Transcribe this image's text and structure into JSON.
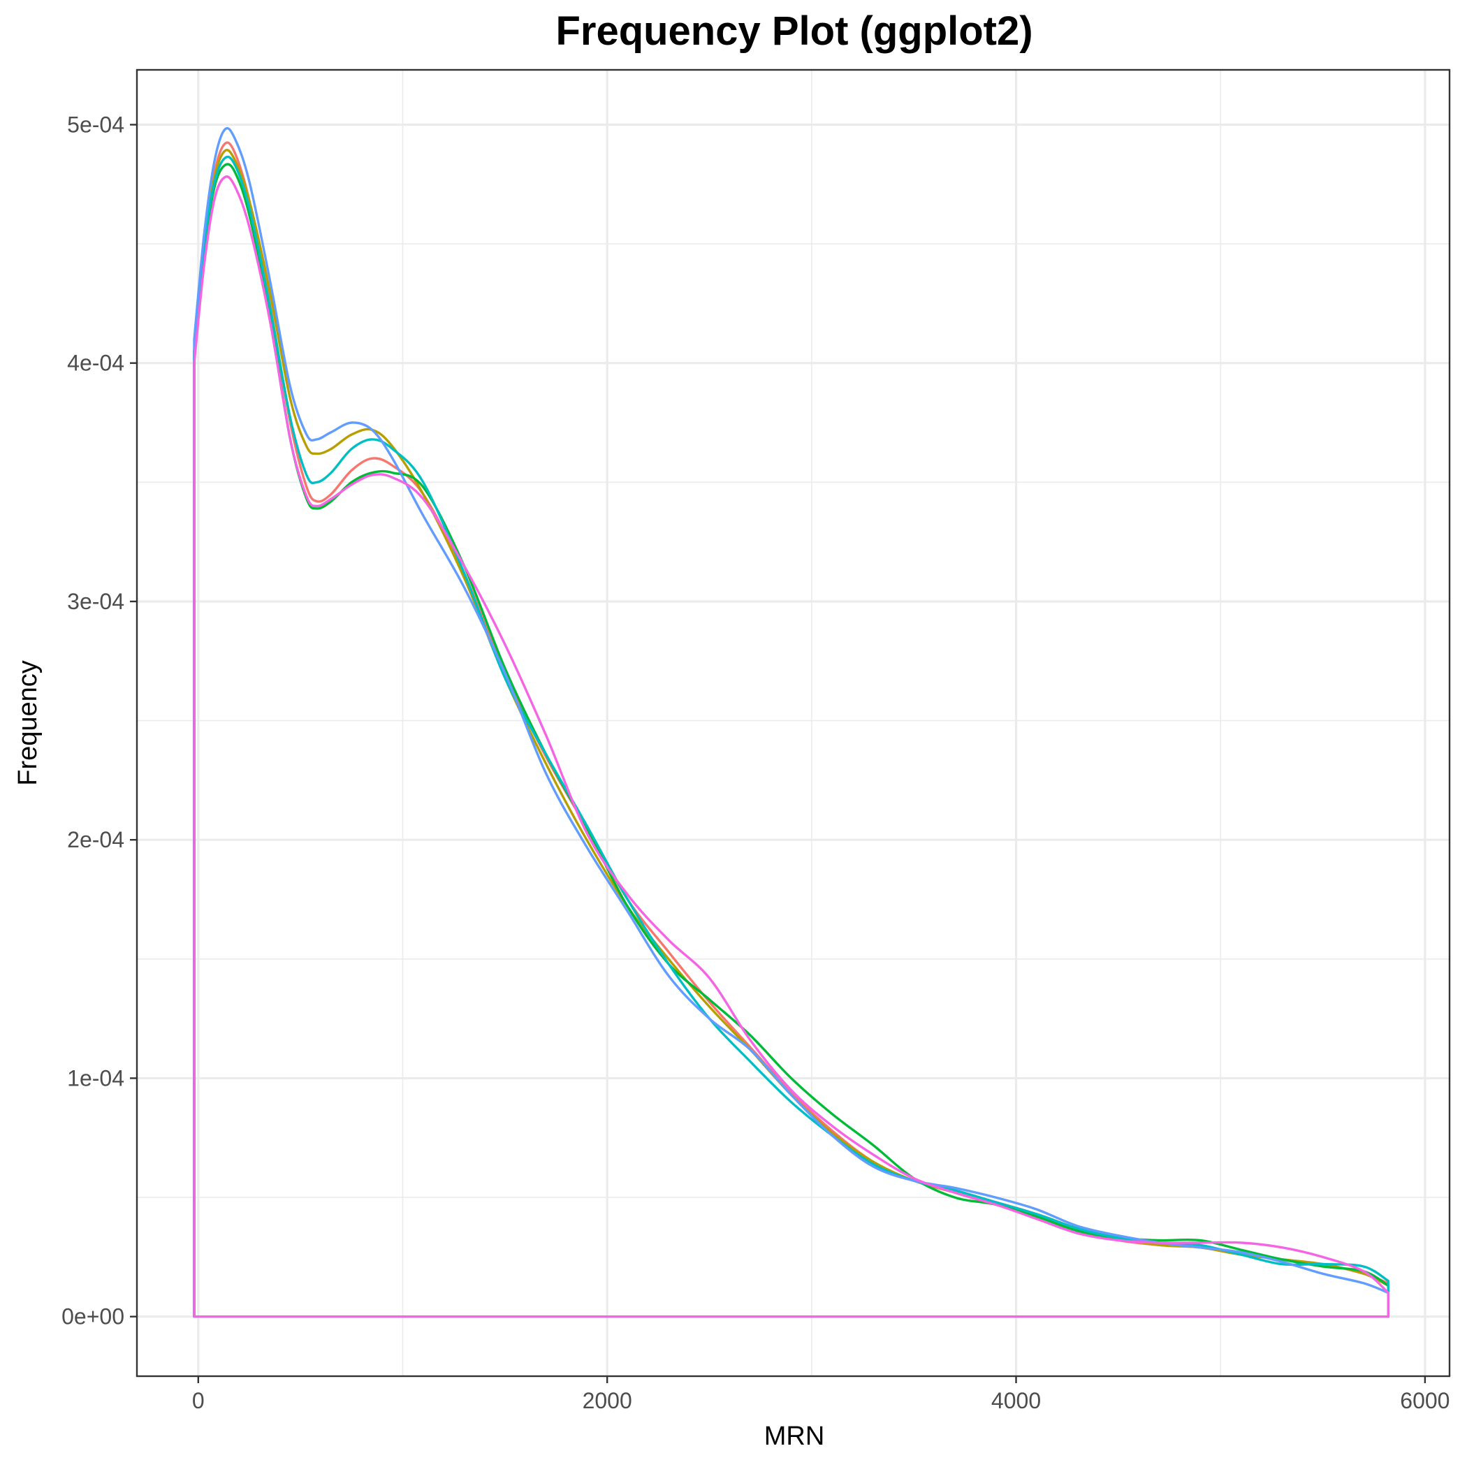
{
  "chart_data": {
    "type": "line",
    "title": "Frequency Plot (ggplot2)",
    "xlabel": "MRN",
    "ylabel": "Frequency",
    "xlim": [
      -300,
      6120
    ],
    "ylim": [
      -2.5e-05,
      0.000523
    ],
    "x_ticks": [
      0,
      2000,
      4000,
      6000
    ],
    "x_tick_labels": [
      "0",
      "2000",
      "4000",
      "6000"
    ],
    "y_ticks": [
      0,
      0.0001,
      0.0002,
      0.0003,
      0.0004,
      0.0005
    ],
    "y_tick_labels": [
      "0e+00",
      "1e-04",
      "2e-04",
      "3e-04",
      "4e-04",
      "5e-04"
    ],
    "grid": true,
    "legend": "none",
    "series": [
      {
        "color": "#F8766D",
        "points": [
          [
            -20,
            0
          ],
          [
            -20,
            0.000405
          ],
          [
            30,
            0.00045
          ],
          [
            80,
            0.00048
          ],
          [
            130,
            0.000492
          ],
          [
            180,
            0.000488
          ],
          [
            250,
            0.000468
          ],
          [
            350,
            0.000425
          ],
          [
            450,
            0.000375
          ],
          [
            530,
            0.000348
          ],
          [
            580,
            0.000342
          ],
          [
            650,
            0.000345
          ],
          [
            750,
            0.000355
          ],
          [
            850,
            0.00036
          ],
          [
            950,
            0.000357
          ],
          [
            1100,
            0.000345
          ],
          [
            1300,
            0.000312
          ],
          [
            1500,
            0.00027
          ],
          [
            1700,
            0.000235
          ],
          [
            1900,
            0.000205
          ],
          [
            2100,
            0.000175
          ],
          [
            2300,
            0.000153
          ],
          [
            2500,
            0.000132
          ],
          [
            2700,
            0.000113
          ],
          [
            2900,
            9.4e-05
          ],
          [
            3100,
            7.8e-05
          ],
          [
            3300,
            6.5e-05
          ],
          [
            3500,
            5.7e-05
          ],
          [
            3700,
            5.3e-05
          ],
          [
            3900,
            4.8e-05
          ],
          [
            4100,
            4.3e-05
          ],
          [
            4300,
            3.6e-05
          ],
          [
            4500,
            3.2e-05
          ],
          [
            4700,
            3e-05
          ],
          [
            4900,
            2.9e-05
          ],
          [
            5100,
            2.6e-05
          ],
          [
            5300,
            2.4e-05
          ],
          [
            5500,
            2.2e-05
          ],
          [
            5700,
            1.8e-05
          ],
          [
            5820,
            1.4e-05
          ],
          [
            5820,
            0
          ],
          [
            -20,
            0
          ]
        ]
      },
      {
        "color": "#B79F00",
        "points": [
          [
            -20,
            0
          ],
          [
            -20,
            0.000405
          ],
          [
            30,
            0.00045
          ],
          [
            80,
            0.000478
          ],
          [
            130,
            0.000489
          ],
          [
            180,
            0.000485
          ],
          [
            250,
            0.000468
          ],
          [
            350,
            0.00043
          ],
          [
            450,
            0.000385
          ],
          [
            530,
            0.000365
          ],
          [
            580,
            0.000362
          ],
          [
            650,
            0.000364
          ],
          [
            750,
            0.00037
          ],
          [
            850,
            0.000372
          ],
          [
            950,
            0.000365
          ],
          [
            1100,
            0.000345
          ],
          [
            1300,
            0.00031
          ],
          [
            1500,
            0.000268
          ],
          [
            1700,
            0.000232
          ],
          [
            1900,
            0.0002
          ],
          [
            2100,
            0.000172
          ],
          [
            2300,
            0.00015
          ],
          [
            2500,
            0.00013
          ],
          [
            2700,
            0.000112
          ],
          [
            2900,
            9.3e-05
          ],
          [
            3100,
            7.7e-05
          ],
          [
            3300,
            6.5e-05
          ],
          [
            3500,
            5.7e-05
          ],
          [
            3700,
            5.2e-05
          ],
          [
            3900,
            4.7e-05
          ],
          [
            4100,
            4.3e-05
          ],
          [
            4300,
            3.7e-05
          ],
          [
            4500,
            3.3e-05
          ],
          [
            4700,
            3e-05
          ],
          [
            4900,
            2.9e-05
          ],
          [
            5100,
            2.6e-05
          ],
          [
            5300,
            2.4e-05
          ],
          [
            5500,
            2.2e-05
          ],
          [
            5700,
            1.8e-05
          ],
          [
            5820,
            1.3e-05
          ],
          [
            5820,
            0
          ],
          [
            -20,
            0
          ]
        ]
      },
      {
        "color": "#00BA38",
        "points": [
          [
            -20,
            0
          ],
          [
            -20,
            0.000405
          ],
          [
            30,
            0.000448
          ],
          [
            80,
            0.000474
          ],
          [
            130,
            0.000483
          ],
          [
            180,
            0.00048
          ],
          [
            250,
            0.000462
          ],
          [
            350,
            0.00042
          ],
          [
            450,
            0.000368
          ],
          [
            530,
            0.000343
          ],
          [
            580,
            0.000339
          ],
          [
            650,
            0.000342
          ],
          [
            750,
            0.00035
          ],
          [
            850,
            0.000354
          ],
          [
            950,
            0.000354
          ],
          [
            1100,
            0.000348
          ],
          [
            1300,
            0.000315
          ],
          [
            1500,
            0.000272
          ],
          [
            1700,
            0.000236
          ],
          [
            1900,
            0.000205
          ],
          [
            2100,
            0.000172
          ],
          [
            2300,
            0.000148
          ],
          [
            2500,
            0.000133
          ],
          [
            2700,
            0.000118
          ],
          [
            2900,
            0.0001
          ],
          [
            3100,
            8.5e-05
          ],
          [
            3300,
            7.2e-05
          ],
          [
            3500,
            5.8e-05
          ],
          [
            3700,
            5e-05
          ],
          [
            3900,
            4.7e-05
          ],
          [
            4100,
            4.2e-05
          ],
          [
            4300,
            3.6e-05
          ],
          [
            4500,
            3.3e-05
          ],
          [
            4700,
            3.2e-05
          ],
          [
            4900,
            3.2e-05
          ],
          [
            5100,
            2.8e-05
          ],
          [
            5300,
            2.4e-05
          ],
          [
            5500,
            2.1e-05
          ],
          [
            5700,
            1.9e-05
          ],
          [
            5820,
            1.3e-05
          ],
          [
            5820,
            0
          ],
          [
            -20,
            0
          ]
        ]
      },
      {
        "color": "#00BFC4",
        "points": [
          [
            -20,
            0
          ],
          [
            -20,
            0.000405
          ],
          [
            30,
            0.00045
          ],
          [
            80,
            0.000476
          ],
          [
            130,
            0.000486
          ],
          [
            180,
            0.000483
          ],
          [
            250,
            0.000465
          ],
          [
            350,
            0.000424
          ],
          [
            450,
            0.000377
          ],
          [
            530,
            0.000353
          ],
          [
            580,
            0.00035
          ],
          [
            650,
            0.000354
          ],
          [
            750,
            0.000364
          ],
          [
            850,
            0.000368
          ],
          [
            950,
            0.000364
          ],
          [
            1100,
            0.00035
          ],
          [
            1300,
            0.000312
          ],
          [
            1500,
            0.000268
          ],
          [
            1700,
            0.000236
          ],
          [
            1900,
            0.000206
          ],
          [
            2100,
            0.000175
          ],
          [
            2300,
            0.000148
          ],
          [
            2500,
            0.000125
          ],
          [
            2700,
            0.000107
          ],
          [
            2900,
            9e-05
          ],
          [
            3100,
            7.6e-05
          ],
          [
            3300,
            6.4e-05
          ],
          [
            3500,
            5.7e-05
          ],
          [
            3700,
            5.3e-05
          ],
          [
            3900,
            4.8e-05
          ],
          [
            4100,
            4.3e-05
          ],
          [
            4300,
            3.7e-05
          ],
          [
            4500,
            3.3e-05
          ],
          [
            4700,
            3.1e-05
          ],
          [
            4900,
            3e-05
          ],
          [
            5100,
            2.6e-05
          ],
          [
            5300,
            2.2e-05
          ],
          [
            5500,
            2.2e-05
          ],
          [
            5700,
            2.1e-05
          ],
          [
            5820,
            1.5e-05
          ],
          [
            5820,
            0
          ],
          [
            -20,
            0
          ]
        ]
      },
      {
        "color": "#619CFF",
        "points": [
          [
            -20,
            0
          ],
          [
            -20,
            0.00041
          ],
          [
            30,
            0.000455
          ],
          [
            80,
            0.000485
          ],
          [
            130,
            0.000498
          ],
          [
            180,
            0.000494
          ],
          [
            250,
            0.000476
          ],
          [
            350,
            0.000435
          ],
          [
            450,
            0.00039
          ],
          [
            530,
            0.00037
          ],
          [
            580,
            0.000368
          ],
          [
            650,
            0.000371
          ],
          [
            750,
            0.000375
          ],
          [
            850,
            0.000372
          ],
          [
            950,
            0.00036
          ],
          [
            1100,
            0.000336
          ],
          [
            1300,
            0.000306
          ],
          [
            1500,
            0.00027
          ],
          [
            1700,
            0.000228
          ],
          [
            1900,
            0.000197
          ],
          [
            2100,
            0.00017
          ],
          [
            2300,
            0.000143
          ],
          [
            2500,
            0.000125
          ],
          [
            2700,
            0.000112
          ],
          [
            2900,
            9.3e-05
          ],
          [
            3100,
            7.6e-05
          ],
          [
            3300,
            6.3e-05
          ],
          [
            3500,
            5.7e-05
          ],
          [
            3700,
            5.4e-05
          ],
          [
            3900,
            5e-05
          ],
          [
            4100,
            4.5e-05
          ],
          [
            4300,
            3.8e-05
          ],
          [
            4500,
            3.4e-05
          ],
          [
            4700,
            3.1e-05
          ],
          [
            4900,
            2.9e-05
          ],
          [
            5100,
            2.7e-05
          ],
          [
            5300,
            2.3e-05
          ],
          [
            5500,
            1.8e-05
          ],
          [
            5700,
            1.4e-05
          ],
          [
            5820,
            1e-05
          ],
          [
            5820,
            0
          ],
          [
            -20,
            0
          ]
        ]
      },
      {
        "color": "#F564E3",
        "points": [
          [
            -20,
            0
          ],
          [
            -20,
            0.0004
          ],
          [
            30,
            0.000442
          ],
          [
            80,
            0.000469
          ],
          [
            130,
            0.000478
          ],
          [
            180,
            0.000474
          ],
          [
            250,
            0.000457
          ],
          [
            350,
            0.000418
          ],
          [
            450,
            0.000368
          ],
          [
            530,
            0.000344
          ],
          [
            580,
            0.00034
          ],
          [
            650,
            0.000343
          ],
          [
            750,
            0.000349
          ],
          [
            850,
            0.000353
          ],
          [
            950,
            0.000352
          ],
          [
            1100,
            0.000343
          ],
          [
            1300,
            0.000315
          ],
          [
            1500,
            0.000282
          ],
          [
            1700,
            0.000244
          ],
          [
            1900,
            0.000203
          ],
          [
            2100,
            0.000177
          ],
          [
            2300,
            0.000158
          ],
          [
            2500,
            0.000142
          ],
          [
            2700,
            0.000116
          ],
          [
            2900,
            9.5e-05
          ],
          [
            3100,
            8e-05
          ],
          [
            3300,
            6.8e-05
          ],
          [
            3500,
            5.8e-05
          ],
          [
            3700,
            5.2e-05
          ],
          [
            3900,
            4.7e-05
          ],
          [
            4100,
            4.1e-05
          ],
          [
            4300,
            3.5e-05
          ],
          [
            4500,
            3.2e-05
          ],
          [
            4700,
            3.1e-05
          ],
          [
            4900,
            3.1e-05
          ],
          [
            5100,
            3.1e-05
          ],
          [
            5300,
            2.9e-05
          ],
          [
            5500,
            2.5e-05
          ],
          [
            5700,
            1.9e-05
          ],
          [
            5820,
            1e-05
          ],
          [
            5820,
            0
          ],
          [
            -20,
            0
          ]
        ]
      }
    ]
  }
}
